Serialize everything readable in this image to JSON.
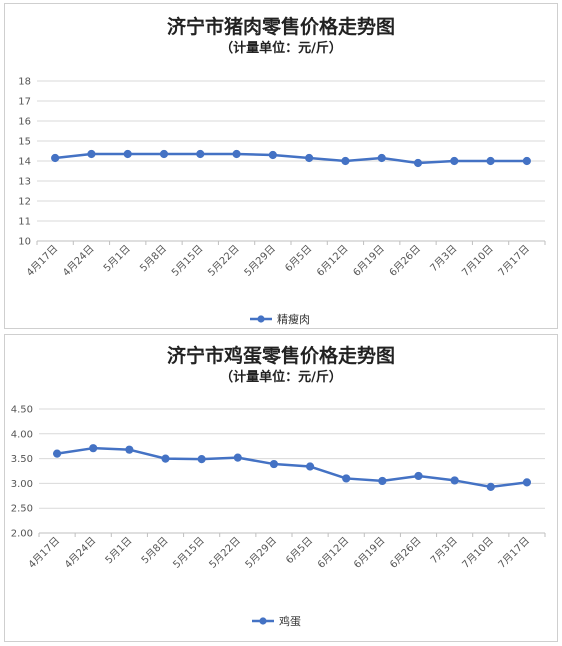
{
  "charts": [
    {
      "title": "济宁市猪肉零售价格走势图",
      "subtitle": "（计量单位：元/斤）"
    },
    {
      "title": "济宁市鸡蛋零售价格走势图",
      "subtitle": "（计量单位：元/斤）"
    }
  ],
  "chart_data": [
    {
      "type": "line",
      "title": "济宁市猪肉零售价格走势图",
      "subtitle": "（计量单位：元/斤）",
      "categories": [
        "4月17日",
        "4月24日",
        "5月1日",
        "5月8日",
        "5月15日",
        "5月22日",
        "5月29日",
        "6月5日",
        "6月12日",
        "6月19日",
        "6月26日",
        "7月3日",
        "7月10日",
        "7月17日"
      ],
      "series": [
        {
          "name": "精瘦肉",
          "color": "#4472c4",
          "values": [
            14.15,
            14.35,
            14.35,
            14.35,
            14.35,
            14.35,
            14.3,
            14.15,
            14.0,
            14.15,
            13.9,
            14.0,
            14.0,
            14.0
          ]
        }
      ],
      "ylim": [
        10,
        18
      ],
      "yticks": [
        "10",
        "11",
        "12",
        "13",
        "14",
        "15",
        "16",
        "17",
        "18"
      ],
      "grid": true,
      "legend": "bottom"
    },
    {
      "type": "line",
      "title": "济宁市鸡蛋零售价格走势图",
      "subtitle": "（计量单位：元/斤）",
      "categories": [
        "4月17日",
        "4月24日",
        "5月1日",
        "5月8日",
        "5月15日",
        "5月22日",
        "5月29日",
        "6月5日",
        "6月12日",
        "6月19日",
        "6月26日",
        "7月3日",
        "7月10日",
        "7月17日"
      ],
      "series": [
        {
          "name": "鸡蛋",
          "color": "#4472c4",
          "values": [
            3.6,
            3.71,
            3.68,
            3.5,
            3.49,
            3.52,
            3.39,
            3.34,
            3.1,
            3.05,
            3.15,
            3.06,
            2.93,
            3.02
          ]
        }
      ],
      "ylim": [
        2.0,
        4.5
      ],
      "yticks": [
        "2.00",
        "2.50",
        "3.00",
        "3.50",
        "4.00",
        "4.50"
      ],
      "grid": true,
      "legend": "bottom"
    }
  ]
}
